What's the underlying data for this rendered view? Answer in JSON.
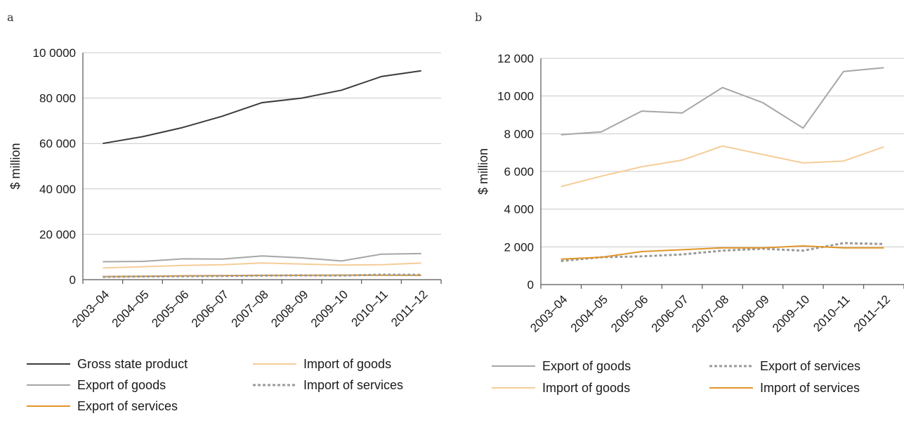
{
  "chart_data": [
    {
      "panel": "a",
      "type": "line",
      "ylabel": "$ million",
      "ylim": [
        0,
        100000
      ],
      "yticks": [
        0,
        20000,
        40000,
        60000,
        80000,
        100000
      ],
      "ytick_labels": [
        "0",
        "20 000",
        "40 000",
        "60 000",
        "80 000",
        "10 0000"
      ],
      "grid": true,
      "categories": [
        "2003–04",
        "2004–05",
        "2005–06",
        "2006–07",
        "2007–08",
        "2008–09",
        "2009–10",
        "2010–11",
        "2011–12"
      ],
      "series": [
        {
          "name": "Gross state product",
          "color": "#3c3c3c",
          "dashed": false,
          "values": [
            60000,
            63000,
            67000,
            72000,
            78000,
            80000,
            83500,
            89500,
            92000
          ]
        },
        {
          "name": "Export of goods",
          "color": "#a6a6a6",
          "dashed": false,
          "values": [
            7900,
            8050,
            9150,
            9050,
            10450,
            9600,
            8250,
            11250,
            11500
          ]
        },
        {
          "name": "Export of services",
          "color": "#e0952a",
          "dashed": false,
          "values": [
            1350,
            1450,
            1700,
            1800,
            1900,
            1900,
            2000,
            1950,
            1900
          ]
        },
        {
          "name": "Import of goods",
          "color": "#f5cc99",
          "dashed": false,
          "values": [
            5150,
            5700,
            6250,
            6600,
            7350,
            6900,
            6450,
            6550,
            7300
          ]
        },
        {
          "name": "Import of services",
          "color": "#9a9a9a",
          "dashed": true,
          "values": [
            1250,
            1400,
            1500,
            1600,
            1800,
            1900,
            1800,
            2200,
            2150
          ]
        }
      ],
      "legend": [
        [
          "Gross state product",
          "Import of goods"
        ],
        [
          "Export of goods",
          "Import of services"
        ],
        [
          "Export of services"
        ]
      ]
    },
    {
      "panel": "b",
      "type": "line",
      "ylabel": "$ million",
      "ylim": [
        0,
        12000
      ],
      "yticks": [
        0,
        2000,
        4000,
        6000,
        8000,
        10000,
        12000
      ],
      "ytick_labels": [
        "0",
        "2 000",
        "4 000",
        "6 000",
        "8 000",
        "10 000",
        "12 000"
      ],
      "grid": true,
      "categories": [
        "2003–04",
        "2004–05",
        "2005–06",
        "2006–07",
        "2007–08",
        "2008–09",
        "2009–10",
        "2010–11",
        "2011–12"
      ],
      "series": [
        {
          "name": "Export of goods",
          "color": "#a6a6a6",
          "dashed": false,
          "values": [
            7950,
            8100,
            9200,
            9100,
            10450,
            9650,
            8300,
            11300,
            11500
          ]
        },
        {
          "name": "Import of goods",
          "color": "#f5cc99",
          "dashed": false,
          "values": [
            5200,
            5750,
            6250,
            6600,
            7350,
            6900,
            6450,
            6550,
            7300
          ]
        },
        {
          "name": "Export of services",
          "color": "#9a9a9a",
          "dashed": true,
          "values": [
            1250,
            1450,
            1500,
            1600,
            1800,
            1900,
            1800,
            2200,
            2150
          ]
        },
        {
          "name": "Import of services",
          "color": "#e0952a",
          "dashed": false,
          "values": [
            1350,
            1450,
            1750,
            1850,
            1950,
            1950,
            2050,
            1950,
            1950
          ]
        }
      ],
      "legend": [
        [
          "Export of goods",
          "Export of services"
        ],
        [
          "Import of goods",
          "Import of services"
        ]
      ]
    }
  ]
}
